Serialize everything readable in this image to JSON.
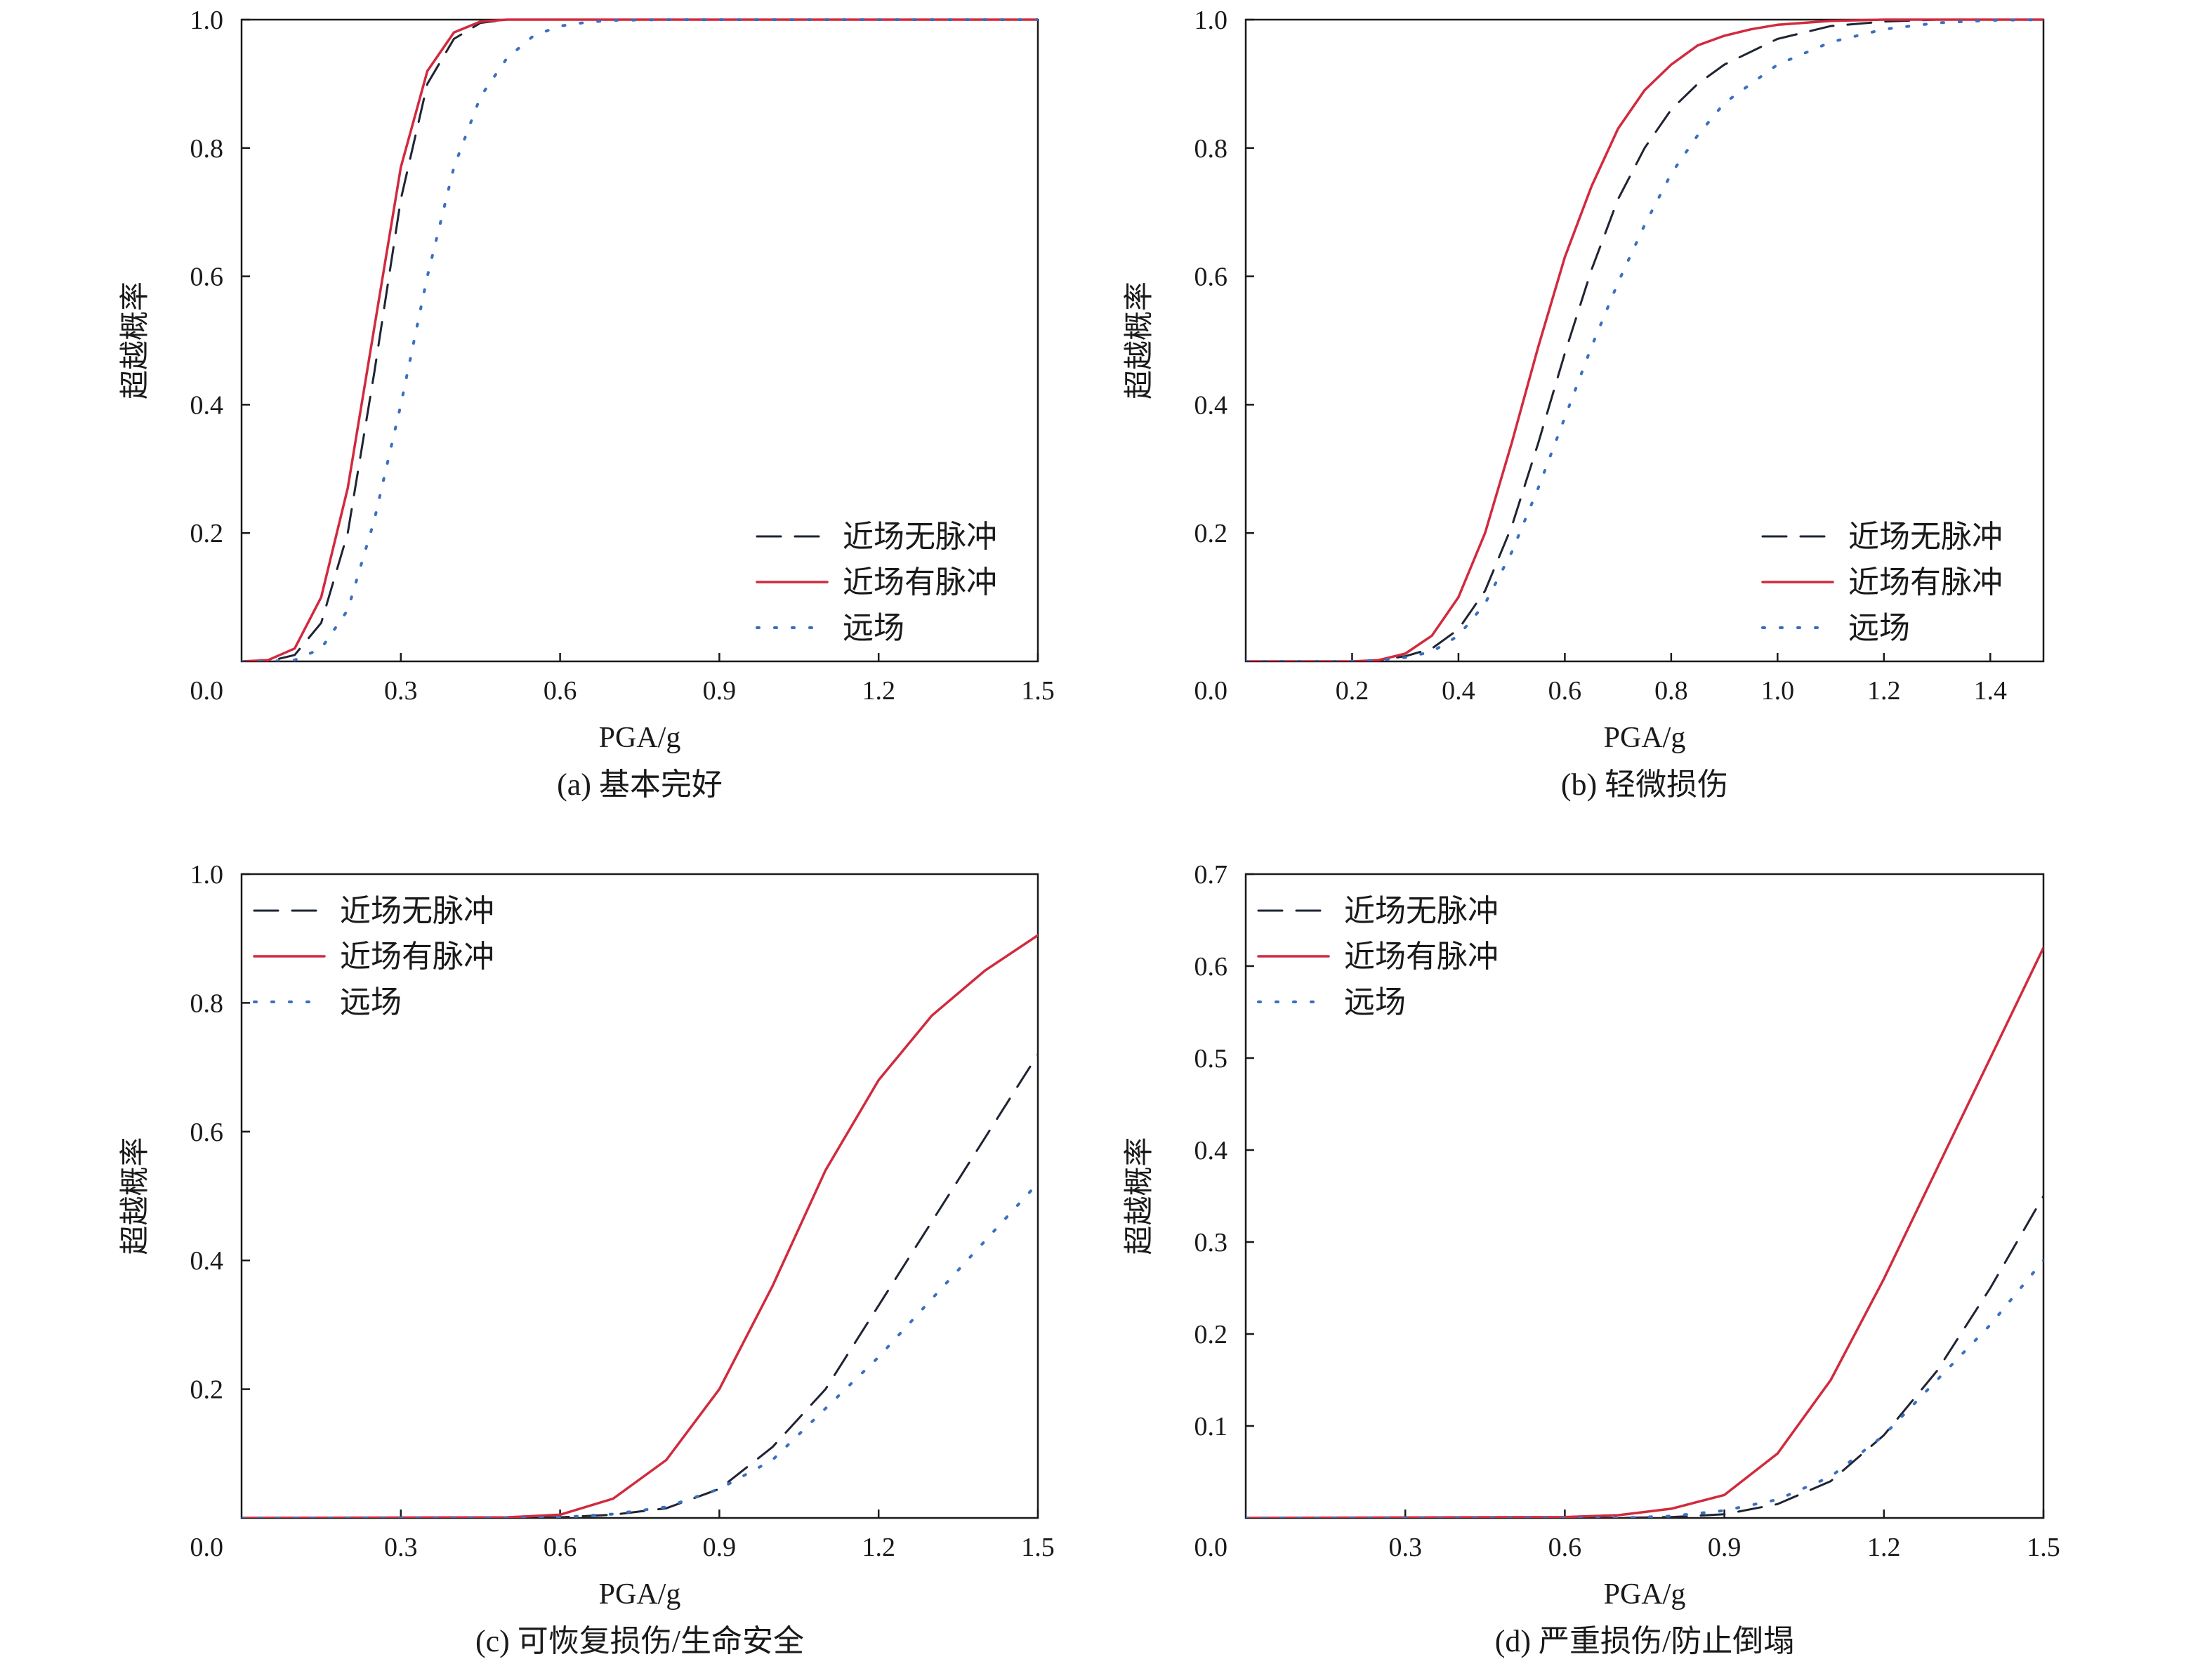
{
  "series_styles": {
    "近场无脉冲": {
      "color": "#1f2433",
      "dash": "34,20",
      "width": 3
    },
    "近场有脉冲": {
      "color": "#d12a3e",
      "dash": "",
      "width": 3.5
    },
    "远场": {
      "color": "#3a6fc0",
      "dash": "3,22",
      "width": 4
    }
  },
  "chart_data": [
    {
      "type": "line",
      "caption": "(a) 基本完好",
      "xlabel": "PGA/g",
      "ylabel": "超越概率",
      "xlim": [
        0,
        1.5
      ],
      "ylim": [
        0,
        1.0
      ],
      "xticks": [
        "0.3",
        "0.6",
        "0.9",
        "1.2",
        "1.5"
      ],
      "xtick_values": [
        0.3,
        0.6,
        0.9,
        1.2,
        1.5
      ],
      "yticks": [
        "0.2",
        "0.4",
        "0.6",
        "0.8",
        "1.0"
      ],
      "ytick_values": [
        0.2,
        0.4,
        0.6,
        0.8,
        1.0
      ],
      "origin_label": "0.0",
      "legend_position": "bottom-right",
      "grid": false,
      "series": [
        {
          "name": "近场无脉冲",
          "x": [
            0,
            0.05,
            0.1,
            0.15,
            0.2,
            0.25,
            0.3,
            0.35,
            0.4,
            0.45,
            0.5,
            0.55,
            0.6,
            0.8,
            1.0,
            1.5
          ],
          "values": [
            0,
            0,
            0.01,
            0.06,
            0.2,
            0.45,
            0.72,
            0.9,
            0.97,
            0.995,
            1.0,
            1.0,
            1.0,
            1.0,
            1.0,
            1.0
          ]
        },
        {
          "name": "近场有脉冲",
          "x": [
            0,
            0.05,
            0.1,
            0.15,
            0.2,
            0.25,
            0.3,
            0.35,
            0.4,
            0.45,
            0.5,
            0.55,
            0.6,
            0.8,
            1.0,
            1.5
          ],
          "values": [
            0,
            0.002,
            0.02,
            0.1,
            0.27,
            0.52,
            0.77,
            0.92,
            0.98,
            0.997,
            1.0,
            1.0,
            1.0,
            1.0,
            1.0,
            1.0
          ]
        },
        {
          "name": "远场",
          "x": [
            0,
            0.05,
            0.1,
            0.15,
            0.2,
            0.25,
            0.3,
            0.35,
            0.4,
            0.45,
            0.5,
            0.55,
            0.6,
            0.65,
            0.7,
            0.8,
            1.0,
            1.5
          ],
          "values": [
            0,
            0,
            0.002,
            0.02,
            0.08,
            0.22,
            0.4,
            0.6,
            0.77,
            0.88,
            0.94,
            0.975,
            0.99,
            0.996,
            0.999,
            1.0,
            1.0,
            1.0
          ]
        }
      ]
    },
    {
      "type": "line",
      "caption": "(b) 轻微损伤",
      "xlabel": "PGA/g",
      "ylabel": "超越概率",
      "xlim": [
        0,
        1.5
      ],
      "ylim": [
        0,
        1.0
      ],
      "xticks": [
        "0.2",
        "0.4",
        "0.6",
        "0.8",
        "1.0",
        "1.2",
        "1.4"
      ],
      "xtick_values": [
        0.2,
        0.4,
        0.6,
        0.8,
        1.0,
        1.2,
        1.4
      ],
      "yticks": [
        "0.2",
        "0.4",
        "0.6",
        "0.8",
        "1.0"
      ],
      "ytick_values": [
        0.2,
        0.4,
        0.6,
        0.8,
        1.0
      ],
      "origin_label": "0.0",
      "legend_position": "bottom-right",
      "grid": false,
      "series": [
        {
          "name": "近场无脉冲",
          "x": [
            0,
            0.2,
            0.25,
            0.3,
            0.35,
            0.4,
            0.45,
            0.5,
            0.55,
            0.6,
            0.65,
            0.7,
            0.75,
            0.8,
            0.85,
            0.9,
            1.0,
            1.1,
            1.2,
            1.3,
            1.5
          ],
          "values": [
            0,
            0,
            0.002,
            0.008,
            0.02,
            0.05,
            0.11,
            0.21,
            0.34,
            0.48,
            0.61,
            0.72,
            0.8,
            0.86,
            0.9,
            0.93,
            0.97,
            0.99,
            0.997,
            1.0,
            1.0
          ]
        },
        {
          "name": "近场有脉冲",
          "x": [
            0,
            0.2,
            0.25,
            0.3,
            0.35,
            0.4,
            0.45,
            0.5,
            0.55,
            0.6,
            0.65,
            0.7,
            0.75,
            0.8,
            0.85,
            0.9,
            0.95,
            1.0,
            1.1,
            1.2,
            1.5
          ],
          "values": [
            0,
            0,
            0.002,
            0.012,
            0.04,
            0.1,
            0.2,
            0.34,
            0.49,
            0.63,
            0.74,
            0.83,
            0.89,
            0.93,
            0.96,
            0.975,
            0.985,
            0.992,
            0.998,
            1.0,
            1.0
          ]
        },
        {
          "name": "远场",
          "x": [
            0,
            0.2,
            0.25,
            0.3,
            0.35,
            0.4,
            0.45,
            0.5,
            0.55,
            0.6,
            0.65,
            0.7,
            0.75,
            0.8,
            0.85,
            0.9,
            1.0,
            1.1,
            1.2,
            1.3,
            1.4,
            1.5
          ],
          "values": [
            0,
            0,
            0.002,
            0.006,
            0.015,
            0.04,
            0.09,
            0.17,
            0.27,
            0.38,
            0.49,
            0.59,
            0.68,
            0.76,
            0.82,
            0.87,
            0.93,
            0.965,
            0.985,
            0.995,
            0.999,
            1.0
          ]
        }
      ]
    },
    {
      "type": "line",
      "caption": "(c) 可恢复损伤/生命安全",
      "xlabel": "PGA/g",
      "ylabel": "超越概率",
      "xlim": [
        0,
        1.5
      ],
      "ylim": [
        0,
        1.0
      ],
      "xticks": [
        "0.3",
        "0.6",
        "0.9",
        "1.2",
        "1.5"
      ],
      "xtick_values": [
        0.3,
        0.6,
        0.9,
        1.2,
        1.5
      ],
      "yticks": [
        "0.2",
        "0.4",
        "0.6",
        "0.8",
        "1.0"
      ],
      "ytick_values": [
        0.2,
        0.4,
        0.6,
        0.8,
        1.0
      ],
      "origin_label": "0.0",
      "legend_position": "top-left",
      "grid": false,
      "series": [
        {
          "name": "近场无脉冲",
          "x": [
            0,
            0.5,
            0.6,
            0.7,
            0.8,
            0.9,
            1.0,
            1.1,
            1.2,
            1.3,
            1.4,
            1.5
          ],
          "values": [
            0,
            0,
            0.001,
            0.005,
            0.015,
            0.045,
            0.11,
            0.2,
            0.33,
            0.46,
            0.59,
            0.72
          ]
        },
        {
          "name": "近场有脉冲",
          "x": [
            0,
            0.5,
            0.6,
            0.7,
            0.8,
            0.9,
            0.95,
            1.0,
            1.05,
            1.1,
            1.2,
            1.3,
            1.4,
            1.5
          ],
          "values": [
            0,
            0.001,
            0.005,
            0.03,
            0.09,
            0.2,
            0.28,
            0.36,
            0.45,
            0.54,
            0.68,
            0.78,
            0.85,
            0.905
          ]
        },
        {
          "name": "远场",
          "x": [
            0,
            0.5,
            0.6,
            0.7,
            0.8,
            0.9,
            1.0,
            1.1,
            1.2,
            1.3,
            1.4,
            1.5
          ],
          "values": [
            0,
            0,
            0.001,
            0.006,
            0.017,
            0.045,
            0.09,
            0.17,
            0.25,
            0.34,
            0.43,
            0.52
          ]
        }
      ]
    },
    {
      "type": "line",
      "caption": "(d) 严重损伤/防止倒塌",
      "xlabel": "PGA/g",
      "ylabel": "超越概率",
      "xlim": [
        0,
        1.5
      ],
      "ylim": [
        0,
        0.7
      ],
      "xticks": [
        "0.3",
        "0.6",
        "0.9",
        "1.2",
        "1.5"
      ],
      "xtick_values": [
        0.3,
        0.6,
        0.9,
        1.2,
        1.5
      ],
      "yticks": [
        "0.1",
        "0.2",
        "0.3",
        "0.4",
        "0.5",
        "0.6",
        "0.7"
      ],
      "ytick_values": [
        0.1,
        0.2,
        0.3,
        0.4,
        0.5,
        0.6,
        0.7
      ],
      "origin_label": "0.0",
      "legend_position": "top-left",
      "grid": false,
      "series": [
        {
          "name": "近场无脉冲",
          "x": [
            0,
            0.7,
            0.8,
            0.9,
            1.0,
            1.1,
            1.2,
            1.3,
            1.4,
            1.5
          ],
          "values": [
            0,
            0,
            0.001,
            0.004,
            0.015,
            0.04,
            0.09,
            0.16,
            0.25,
            0.35
          ]
        },
        {
          "name": "近场有脉冲",
          "x": [
            0,
            0.6,
            0.7,
            0.8,
            0.9,
            1.0,
            1.1,
            1.2,
            1.3,
            1.4,
            1.5
          ],
          "values": [
            0,
            0.001,
            0.003,
            0.01,
            0.025,
            0.07,
            0.15,
            0.26,
            0.38,
            0.5,
            0.62
          ]
        },
        {
          "name": "远场",
          "x": [
            0,
            0.7,
            0.8,
            0.9,
            1.0,
            1.1,
            1.2,
            1.3,
            1.4,
            1.5
          ],
          "values": [
            0,
            0,
            0.002,
            0.008,
            0.02,
            0.045,
            0.09,
            0.15,
            0.21,
            0.28
          ]
        }
      ]
    }
  ]
}
